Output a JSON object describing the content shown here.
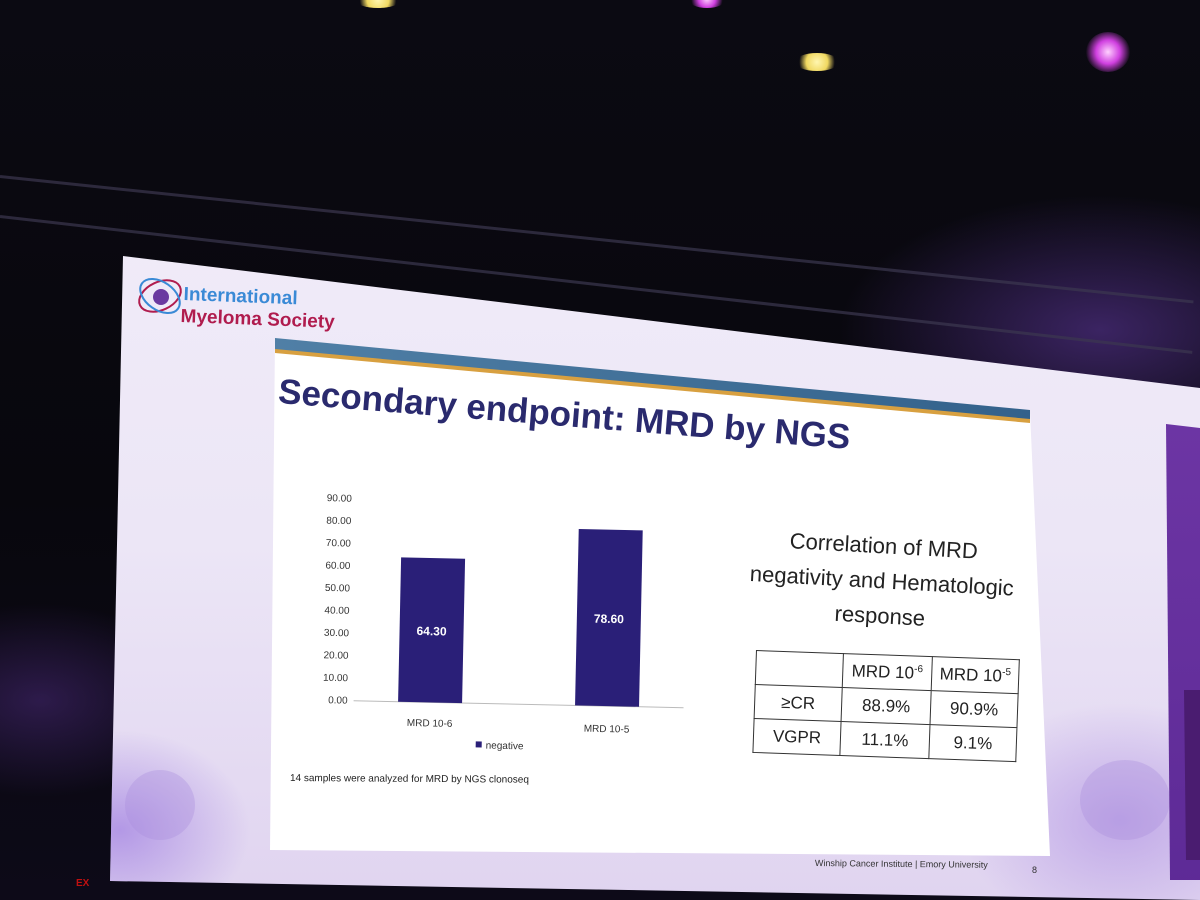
{
  "logo": {
    "line1": "International",
    "line2": "Myeloma Society"
  },
  "slide": {
    "title": "Secondary endpoint: MRD by NGS",
    "footnote": "14 samples were analyzed for MRD by NGS clonoseq",
    "footer": "Winship Cancer Institute | Emory University",
    "page_number": "8"
  },
  "chart_data": {
    "type": "bar",
    "categories": [
      "MRD 10-6",
      "MRD 10-5"
    ],
    "series": [
      {
        "name": "negative",
        "values": [
          64.3,
          78.6
        ],
        "labels": [
          "64.30",
          "78.60"
        ]
      }
    ],
    "ylim": [
      0,
      90
    ],
    "yticks": [
      "0.00",
      "10.00",
      "20.00",
      "30.00",
      "40.00",
      "50.00",
      "60.00",
      "70.00",
      "80.00",
      "90.00"
    ],
    "legend": "bottom",
    "grid": false,
    "colors": {
      "bar": "#2a1f78"
    }
  },
  "correlation": {
    "heading_lines": [
      "Correlation of MRD",
      "negativity and Hematologic",
      "response"
    ],
    "table": {
      "headers": [
        "",
        "MRD 10",
        "MRD 10"
      ],
      "header_exponents": [
        "",
        "-6",
        "-5"
      ],
      "rows": [
        [
          "≥CR",
          "88.9%",
          "90.9%"
        ],
        [
          "VGPR",
          "11.1%",
          "9.1%"
        ]
      ]
    }
  },
  "room": {
    "exit_sign": "EX"
  },
  "colors": {
    "title": "#2a2a6e",
    "logo_blue": "#3a8ad6",
    "logo_red": "#b01c4e",
    "stage_purple": "#7a3fb0"
  }
}
